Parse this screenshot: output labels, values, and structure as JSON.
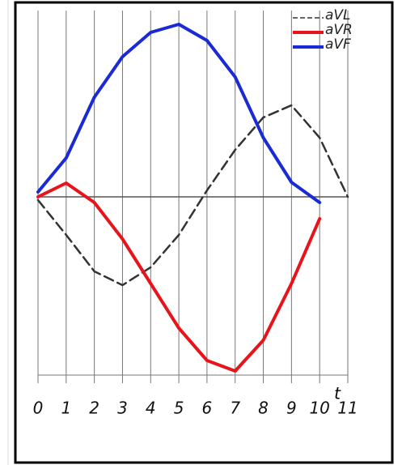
{
  "chart_data": {
    "type": "line",
    "x": [
      0,
      1,
      2,
      3,
      4,
      5,
      6,
      7,
      8,
      9,
      10,
      11
    ],
    "series": [
      {
        "name": "aVL",
        "color": "#333333",
        "line_style": "dashed",
        "values": [
          -0.04,
          -0.47,
          -0.92,
          -1.09,
          -0.87,
          -0.47,
          0.08,
          0.58,
          0.98,
          1.13,
          0.73,
          0
        ]
      },
      {
        "name": "aVR",
        "color": "#e8141b",
        "line_style": "solid",
        "values": [
          0,
          0.17,
          -0.07,
          -0.52,
          -1.07,
          -1.62,
          -2.02,
          -2.15,
          -1.77,
          -1.07,
          -0.27,
          null
        ]
      },
      {
        "name": "aVF",
        "color": "#1a2bd6",
        "line_style": "solid",
        "values": [
          0.06,
          0.48,
          1.23,
          1.73,
          2.03,
          2.13,
          1.93,
          1.48,
          0.73,
          0.18,
          -0.07,
          null
        ]
      }
    ],
    "xlim": [
      0,
      11
    ],
    "xticks": [
      0,
      1,
      2,
      3,
      4,
      5,
      6,
      7,
      8,
      9,
      10,
      11
    ],
    "ylim": [
      -2.3,
      2.3
    ],
    "grid": true,
    "legend": "top-right",
    "annotation": "t"
  }
}
